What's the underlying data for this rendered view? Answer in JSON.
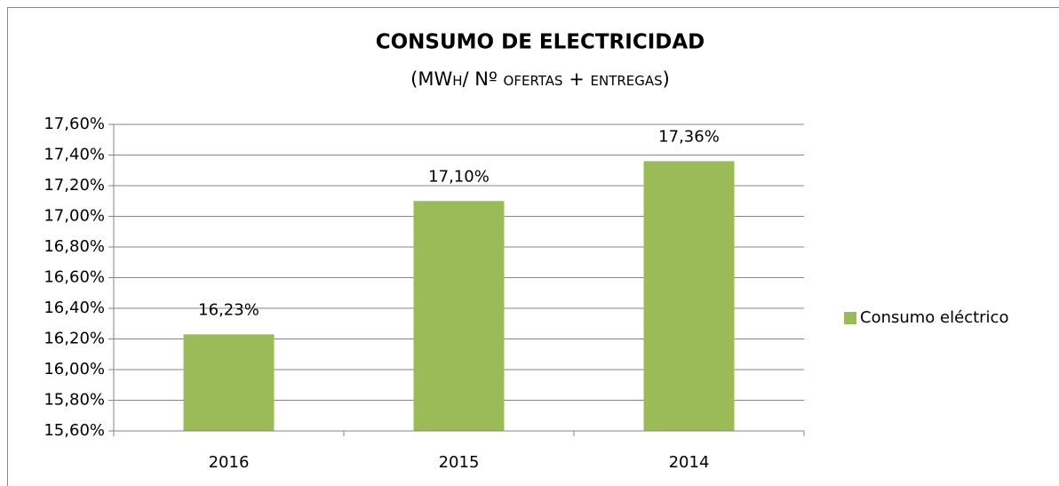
{
  "chart_data": {
    "type": "bar",
    "title": "CONSUMO DE ELECTRICIDAD",
    "subtitle": "(MWh/ Nº ofertas + entregas)",
    "categories": [
      "2016",
      "2015",
      "2014"
    ],
    "series": [
      {
        "name": "Consumo eléctrico",
        "color": "#9bbb59",
        "values": [
          16.23,
          17.1,
          17.36
        ],
        "value_labels": [
          "16,23%",
          "17,10%",
          "17,36%"
        ]
      }
    ],
    "ylim": [
      15.6,
      17.6
    ],
    "yticks": [
      {
        "value": 15.6,
        "label": "15,60%"
      },
      {
        "value": 15.8,
        "label": "15,80%"
      },
      {
        "value": 16.0,
        "label": "16,00%"
      },
      {
        "value": 16.2,
        "label": "16,20%"
      },
      {
        "value": 16.4,
        "label": "16,40%"
      },
      {
        "value": 16.6,
        "label": "16,60%"
      },
      {
        "value": 16.8,
        "label": "16,80%"
      },
      {
        "value": 17.0,
        "label": "17,00%"
      },
      {
        "value": 17.2,
        "label": "17,20%"
      },
      {
        "value": 17.4,
        "label": "17,40%"
      },
      {
        "value": 17.6,
        "label": "17,60%"
      }
    ],
    "grid": true,
    "legend": "right"
  }
}
